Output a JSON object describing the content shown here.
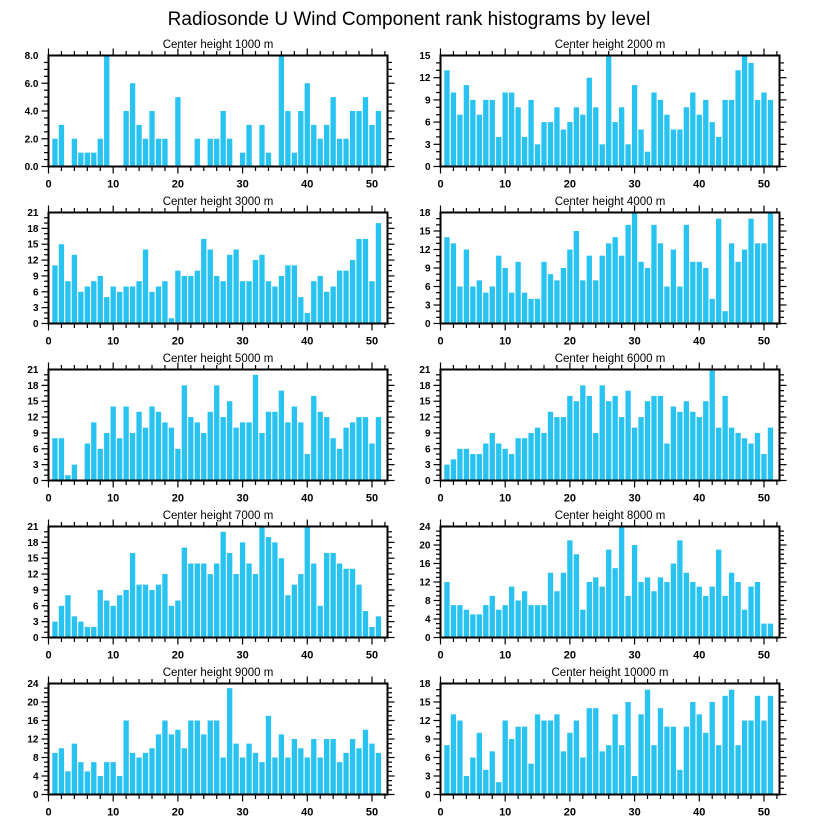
{
  "title": "Radiosonde U Wind Component rank histograms by level",
  "bar_color": "#29c3f2",
  "axis_color": "#000000",
  "chart_data": [
    {
      "type": "bar",
      "title": "Center height 1000 m",
      "ylim": [
        0,
        8
      ],
      "ytick_step": 2,
      "ytick_minor": 0.5,
      "ylabel_decimals": 1,
      "xlim": [
        0,
        52.4
      ],
      "xticks": [
        0,
        10,
        20,
        30,
        40,
        50
      ],
      "xtick_minor": 2,
      "values": [
        2,
        3,
        0,
        2,
        1,
        1,
        1,
        2,
        8,
        0,
        0,
        4,
        6,
        3,
        2,
        4,
        2,
        2,
        0,
        5,
        0,
        0,
        2,
        0,
        2,
        2,
        4,
        2,
        0,
        1,
        3,
        0,
        3,
        1,
        0,
        8,
        4,
        1,
        4,
        6,
        3,
        2,
        3,
        5,
        2,
        2,
        4,
        4,
        5,
        3,
        4
      ]
    },
    {
      "type": "bar",
      "title": "Center height 2000 m",
      "ylim": [
        0,
        15
      ],
      "ytick_step": 3,
      "ytick_minor": 1,
      "ylabel_decimals": 0,
      "xlim": [
        0,
        52.4
      ],
      "xticks": [
        0,
        10,
        20,
        30,
        40,
        50
      ],
      "xtick_minor": 2,
      "values": [
        13,
        10,
        7,
        11,
        9,
        7,
        9,
        9,
        4,
        10,
        10,
        8,
        4,
        9,
        3,
        6,
        6,
        8,
        5,
        6,
        8,
        7,
        12,
        8,
        3,
        15,
        6,
        8,
        3,
        11,
        5,
        2,
        10,
        9,
        7,
        5,
        5,
        8,
        10,
        7,
        9,
        6,
        4,
        9,
        9,
        13,
        15,
        14,
        9,
        10,
        9
      ]
    },
    {
      "type": "bar",
      "title": "Center height 3000 m",
      "ylim": [
        0,
        21
      ],
      "ytick_step": 3,
      "ytick_minor": 1,
      "ylabel_decimals": 0,
      "xlim": [
        0,
        52.4
      ],
      "xticks": [
        0,
        10,
        20,
        30,
        40,
        50
      ],
      "xtick_minor": 2,
      "values": [
        11,
        15,
        8,
        13,
        6,
        7,
        8,
        9,
        5,
        7,
        6,
        7,
        7,
        8,
        14,
        6,
        7,
        8,
        1,
        10,
        9,
        9,
        10,
        16,
        14,
        9,
        8,
        13,
        14,
        8,
        8,
        12,
        13,
        8,
        7,
        9,
        11,
        11,
        5,
        2,
        8,
        9,
        6,
        7,
        10,
        10,
        12,
        16,
        16,
        8,
        19
      ]
    },
    {
      "type": "bar",
      "title": "Center height 4000 m",
      "ylim": [
        0,
        18
      ],
      "ytick_step": 3,
      "ytick_minor": 1,
      "ylabel_decimals": 0,
      "xlim": [
        0,
        52.4
      ],
      "xticks": [
        0,
        10,
        20,
        30,
        40,
        50
      ],
      "xtick_minor": 2,
      "values": [
        14,
        13,
        6,
        12,
        6,
        7,
        5,
        6,
        11,
        9,
        5,
        10,
        5,
        4,
        4,
        10,
        8,
        7,
        9,
        12,
        15,
        7,
        11,
        7,
        11,
        13,
        14,
        11,
        16,
        18,
        10,
        9,
        16,
        13,
        6,
        12,
        6,
        16,
        10,
        10,
        9,
        4,
        17,
        2,
        13,
        10,
        12,
        17,
        13,
        13,
        18
      ]
    },
    {
      "type": "bar",
      "title": "Center height 5000 m",
      "ylim": [
        0,
        21
      ],
      "ytick_step": 3,
      "ytick_minor": 1,
      "ylabel_decimals": 0,
      "xlim": [
        0,
        52.4
      ],
      "xticks": [
        0,
        10,
        20,
        30,
        40,
        50
      ],
      "xtick_minor": 2,
      "values": [
        8,
        8,
        1,
        3,
        0,
        7,
        11,
        6,
        9,
        14,
        8,
        14,
        9,
        13,
        10,
        14,
        13,
        11,
        10,
        6,
        18,
        12,
        11,
        9,
        13,
        18,
        12,
        15,
        10,
        11,
        11,
        20,
        9,
        13,
        13,
        17,
        11,
        14,
        11,
        5,
        16,
        13,
        12,
        8,
        6,
        10,
        11,
        12,
        12,
        7,
        12
      ]
    },
    {
      "type": "bar",
      "title": "Center height 6000 m",
      "ylim": [
        0,
        21
      ],
      "ytick_step": 3,
      "ytick_minor": 1,
      "ylabel_decimals": 0,
      "xlim": [
        0,
        52.4
      ],
      "xticks": [
        0,
        10,
        20,
        30,
        40,
        50
      ],
      "xtick_minor": 2,
      "values": [
        3,
        4,
        6,
        6,
        5,
        5,
        7,
        9,
        7,
        6,
        5,
        8,
        8,
        9,
        10,
        9,
        13,
        12,
        12,
        16,
        15,
        18,
        16,
        9,
        18,
        15,
        16,
        12,
        17,
        10,
        12,
        15,
        16,
        16,
        7,
        14,
        13,
        15,
        13,
        12,
        15,
        21,
        10,
        16,
        10,
        9,
        8,
        7,
        9,
        5,
        10
      ]
    },
    {
      "type": "bar",
      "title": "Center height 7000 m",
      "ylim": [
        0,
        21
      ],
      "ytick_step": 3,
      "ytick_minor": 1,
      "ylabel_decimals": 0,
      "xlim": [
        0,
        52.4
      ],
      "xticks": [
        0,
        10,
        20,
        30,
        40,
        50
      ],
      "xtick_minor": 2,
      "values": [
        3,
        6,
        8,
        4,
        3,
        2,
        2,
        9,
        7,
        6,
        8,
        9,
        16,
        10,
        10,
        9,
        10,
        12,
        6,
        7,
        17,
        14,
        14,
        14,
        12,
        14,
        20,
        16,
        12,
        18,
        14,
        12,
        21,
        19,
        18,
        15,
        8,
        10,
        12,
        21,
        14,
        6,
        16,
        16,
        14,
        13,
        13,
        10,
        5,
        2,
        4
      ]
    },
    {
      "type": "bar",
      "title": "Center height 8000 m",
      "ylim": [
        0,
        24
      ],
      "ytick_step": 4,
      "ytick_minor": 1,
      "ylabel_decimals": 0,
      "xlim": [
        0,
        52.4
      ],
      "xticks": [
        0,
        10,
        20,
        30,
        40,
        50
      ],
      "xtick_minor": 2,
      "values": [
        12,
        7,
        7,
        6,
        5,
        5,
        7,
        9,
        6,
        7,
        11,
        8,
        10,
        7,
        7,
        7,
        14,
        10,
        14,
        21,
        18,
        6,
        12,
        13,
        11,
        19,
        15,
        24,
        9,
        20,
        12,
        13,
        10,
        13,
        12,
        16,
        21,
        14,
        12,
        11,
        9,
        11,
        19,
        9,
        14,
        12,
        6,
        11,
        12,
        3,
        3
      ]
    },
    {
      "type": "bar",
      "title": "Center height 9000 m",
      "ylim": [
        0,
        24
      ],
      "ytick_step": 4,
      "ytick_minor": 1,
      "ylabel_decimals": 0,
      "xlim": [
        0,
        52.4
      ],
      "xticks": [
        0,
        10,
        20,
        30,
        40,
        50
      ],
      "xtick_minor": 2,
      "values": [
        9,
        10,
        5,
        11,
        7,
        5,
        7,
        4,
        7,
        7,
        4,
        16,
        9,
        8,
        9,
        10,
        13,
        16,
        13,
        14,
        10,
        16,
        16,
        13,
        16,
        16,
        8,
        23,
        11,
        8,
        11,
        9,
        7,
        17,
        8,
        13,
        8,
        12,
        10,
        8,
        12,
        8,
        12,
        12,
        7,
        9,
        12,
        10,
        14,
        11,
        9
      ]
    },
    {
      "type": "bar",
      "title": "Center height 10000 m",
      "ylim": [
        0,
        18
      ],
      "ytick_step": 3,
      "ytick_minor": 1,
      "ylabel_decimals": 0,
      "xlim": [
        0,
        52.4
      ],
      "xticks": [
        0,
        10,
        20,
        30,
        40,
        50
      ],
      "xtick_minor": 2,
      "values": [
        8,
        13,
        12,
        3,
        6,
        10,
        4,
        7,
        2,
        12,
        9,
        11,
        11,
        5,
        13,
        12,
        12,
        13,
        7,
        10,
        12,
        6,
        14,
        14,
        7,
        8,
        13,
        8,
        15,
        3,
        13,
        17,
        8,
        14,
        11,
        11,
        4,
        11,
        15,
        13,
        10,
        15,
        8,
        16,
        17,
        8,
        12,
        12,
        16,
        12,
        16
      ]
    }
  ]
}
